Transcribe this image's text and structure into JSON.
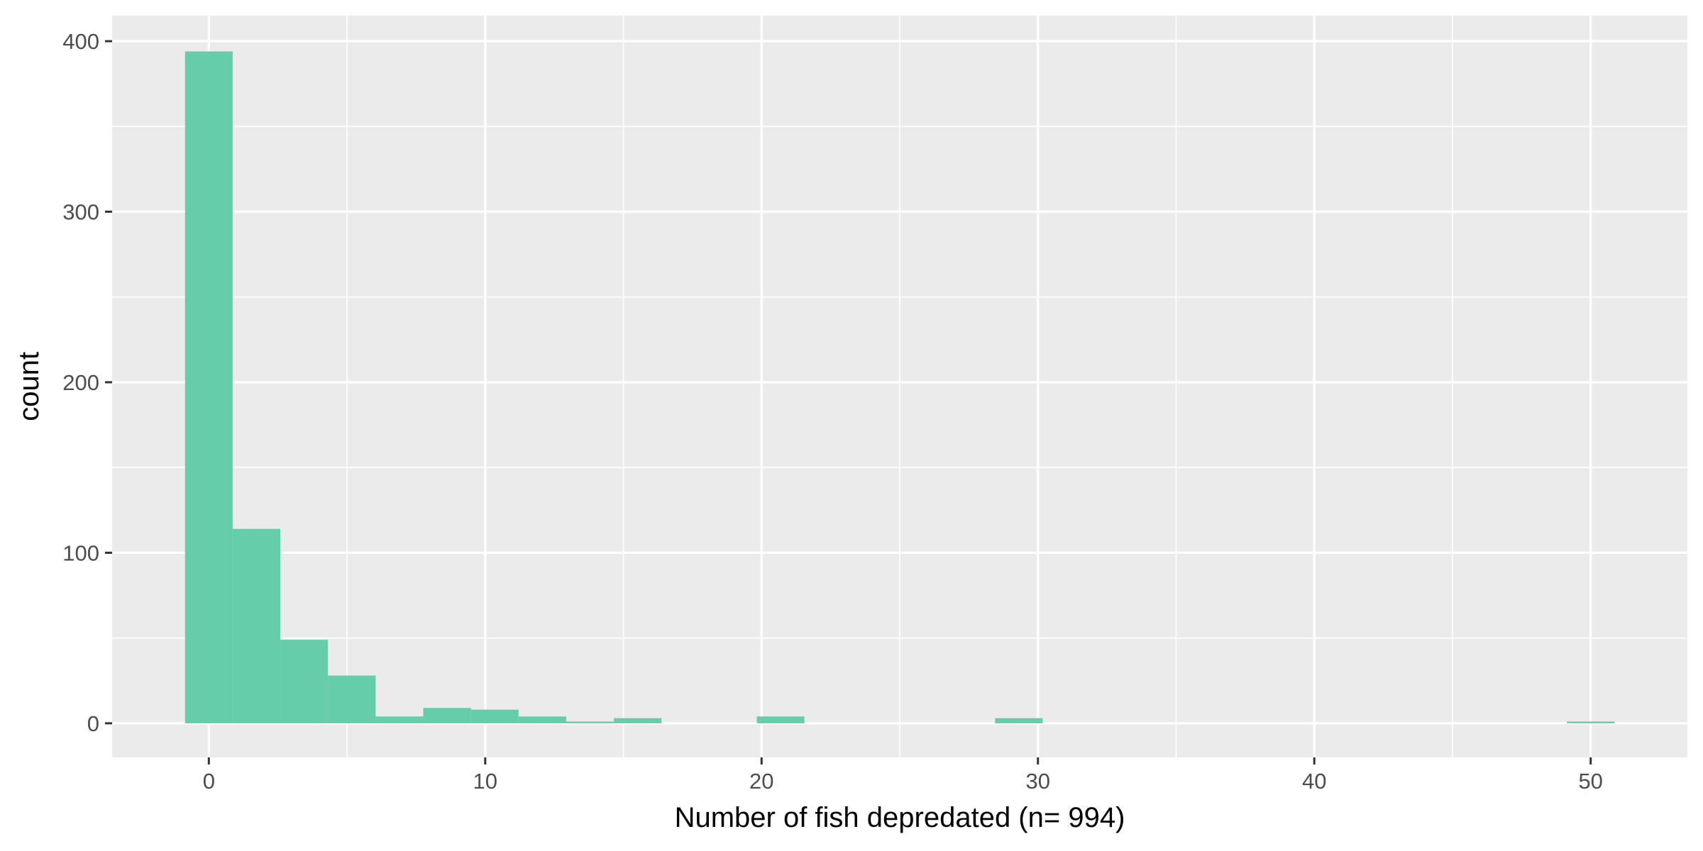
{
  "chart_data": {
    "type": "bar",
    "subtype": "histogram",
    "title": "",
    "xlabel": "Number of fish depredated (n= 994)",
    "ylabel": "count",
    "xlim": [
      -3.5,
      53.5
    ],
    "ylim": [
      -20,
      415
    ],
    "x_ticks": [
      0,
      10,
      20,
      30,
      40,
      50
    ],
    "y_ticks": [
      0,
      100,
      200,
      300,
      400
    ],
    "x_minor_gridlines": [
      5,
      15,
      25,
      35,
      45
    ],
    "y_minor_gridlines": [
      50,
      150,
      250,
      350
    ],
    "grid": true,
    "legend": "none",
    "bin_width": 1.724,
    "bins": [
      {
        "x0": -0.862,
        "x1": 0.862,
        "count": 394
      },
      {
        "x0": 0.862,
        "x1": 2.586,
        "count": 114
      },
      {
        "x0": 2.586,
        "x1": 4.31,
        "count": 49
      },
      {
        "x0": 4.31,
        "x1": 6.034,
        "count": 28
      },
      {
        "x0": 6.034,
        "x1": 7.759,
        "count": 4
      },
      {
        "x0": 7.759,
        "x1": 9.483,
        "count": 9
      },
      {
        "x0": 9.483,
        "x1": 11.207,
        "count": 8
      },
      {
        "x0": 11.207,
        "x1": 12.931,
        "count": 4
      },
      {
        "x0": 12.931,
        "x1": 14.655,
        "count": 1
      },
      {
        "x0": 14.655,
        "x1": 16.379,
        "count": 3
      },
      {
        "x0": 19.828,
        "x1": 21.552,
        "count": 4
      },
      {
        "x0": 28.448,
        "x1": 30.172,
        "count": 3
      },
      {
        "x0": 49.138,
        "x1": 50.862,
        "count": 1
      }
    ],
    "colors": {
      "bar": "#66CDAA",
      "panel_background": "#EBEBEB",
      "grid": "#FFFFFF"
    }
  }
}
